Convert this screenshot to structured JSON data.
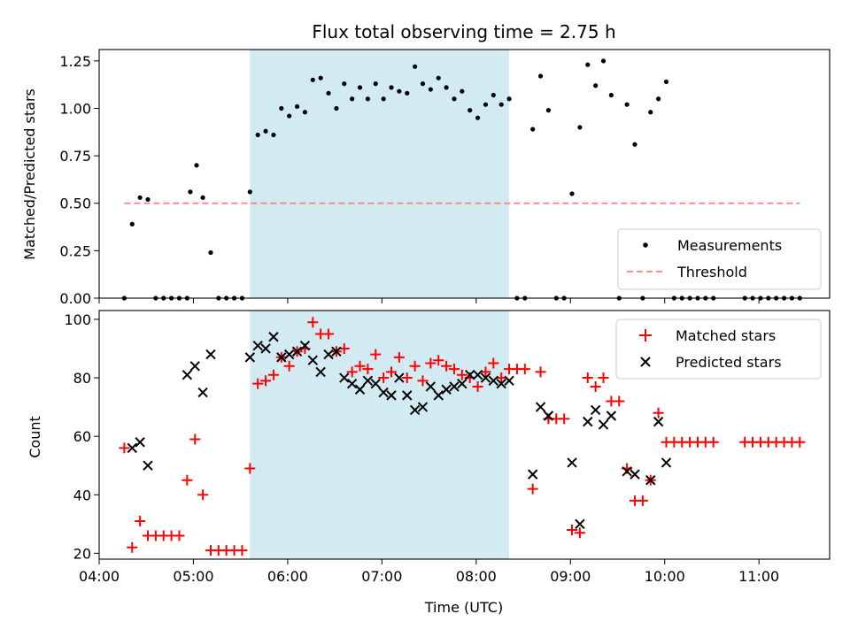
{
  "chart_data": [
    {
      "type": "scatter",
      "title": "Flux total observing time = 2.75 h",
      "xlabel": "",
      "ylabel": "Matched/Predicted stars",
      "xlim": [
        "04:00",
        "11:45"
      ],
      "ylim": [
        0,
        1.31
      ],
      "yticks": [
        0.0,
        0.25,
        0.5,
        0.75,
        1.0,
        1.25
      ],
      "ytick_labels": [
        "0.00",
        "0.25",
        "0.50",
        "0.75",
        "1.00",
        "1.25"
      ],
      "xticks": [
        "04:00",
        "05:00",
        "06:00",
        "07:00",
        "08:00",
        "09:00",
        "10:00",
        "11:00"
      ],
      "shaded_region": {
        "start": "05:36",
        "end": "08:21",
        "color": "#add8e6"
      },
      "legend_position": "lower right",
      "series": [
        {
          "name": "Measurements",
          "marker": "dot",
          "color": "#000000",
          "points": [
            [
              "04:16",
              0.0
            ],
            [
              "04:21",
              0.39
            ],
            [
              "04:26",
              0.53
            ],
            [
              "04:31",
              0.52
            ],
            [
              "04:36",
              0.0
            ],
            [
              "04:41",
              0.0
            ],
            [
              "04:46",
              0.0
            ],
            [
              "04:51",
              0.0
            ],
            [
              "04:56",
              0.0
            ],
            [
              "04:58",
              0.56
            ],
            [
              "05:02",
              0.7
            ],
            [
              "05:06",
              0.53
            ],
            [
              "05:11",
              0.24
            ],
            [
              "05:16",
              0.0
            ],
            [
              "05:21",
              0.0
            ],
            [
              "05:26",
              0.0
            ],
            [
              "05:31",
              0.0
            ],
            [
              "05:36",
              0.56
            ],
            [
              "05:41",
              0.86
            ],
            [
              "05:46",
              0.88
            ],
            [
              "05:51",
              0.86
            ],
            [
              "05:56",
              1.0
            ],
            [
              "06:01",
              0.96
            ],
            [
              "06:06",
              1.01
            ],
            [
              "06:11",
              0.98
            ],
            [
              "06:16",
              1.15
            ],
            [
              "06:21",
              1.16
            ],
            [
              "06:26",
              1.08
            ],
            [
              "06:31",
              1.0
            ],
            [
              "06:36",
              1.13
            ],
            [
              "06:41",
              1.05
            ],
            [
              "06:46",
              1.11
            ],
            [
              "06:51",
              1.05
            ],
            [
              "06:56",
              1.13
            ],
            [
              "07:01",
              1.05
            ],
            [
              "07:06",
              1.11
            ],
            [
              "07:11",
              1.09
            ],
            [
              "07:16",
              1.08
            ],
            [
              "07:21",
              1.22
            ],
            [
              "07:26",
              1.13
            ],
            [
              "07:31",
              1.1
            ],
            [
              "07:36",
              1.16
            ],
            [
              "07:41",
              1.11
            ],
            [
              "07:46",
              1.05
            ],
            [
              "07:51",
              1.09
            ],
            [
              "07:56",
              0.99
            ],
            [
              "08:01",
              0.95
            ],
            [
              "08:06",
              1.02
            ],
            [
              "08:11",
              1.07
            ],
            [
              "08:16",
              1.02
            ],
            [
              "08:21",
              1.05
            ],
            [
              "08:26",
              0.0
            ],
            [
              "08:31",
              0.0
            ],
            [
              "08:36",
              0.89
            ],
            [
              "08:41",
              1.17
            ],
            [
              "08:46",
              0.99
            ],
            [
              "08:51",
              0.0
            ],
            [
              "08:56",
              0.0
            ],
            [
              "09:01",
              0.55
            ],
            [
              "09:06",
              0.9
            ],
            [
              "09:11",
              1.23
            ],
            [
              "09:16",
              1.12
            ],
            [
              "09:21",
              1.25
            ],
            [
              "09:26",
              1.07
            ],
            [
              "09:31",
              0.0
            ],
            [
              "09:36",
              1.02
            ],
            [
              "09:41",
              0.81
            ],
            [
              "09:46",
              0.0
            ],
            [
              "09:51",
              0.98
            ],
            [
              "09:56",
              1.05
            ],
            [
              "10:01",
              1.14
            ],
            [
              "10:06",
              0.0
            ],
            [
              "10:11",
              0.0
            ],
            [
              "10:16",
              0.0
            ],
            [
              "10:21",
              0.0
            ],
            [
              "10:26",
              0.0
            ],
            [
              "10:31",
              0.0
            ],
            [
              "10:51",
              0.0
            ],
            [
              "10:56",
              0.0
            ],
            [
              "11:01",
              0.0
            ],
            [
              "11:06",
              0.0
            ],
            [
              "11:11",
              0.0
            ],
            [
              "11:16",
              0.0
            ],
            [
              "11:21",
              0.0
            ],
            [
              "11:26",
              0.0
            ]
          ]
        },
        {
          "name": "Threshold",
          "marker": "dashed-line",
          "color": "#ff8080",
          "points": [
            [
              "04:16",
              0.5
            ],
            [
              "11:26",
              0.5
            ]
          ]
        }
      ]
    },
    {
      "type": "scatter",
      "title": "",
      "xlabel": "Time (UTC)",
      "ylabel": "Count",
      "xlim": [
        "04:00",
        "11:45"
      ],
      "ylim": [
        18,
        103
      ],
      "yticks": [
        20,
        40,
        60,
        80,
        100
      ],
      "ytick_labels": [
        "20",
        "40",
        "60",
        "80",
        "100"
      ],
      "xticks": [
        "04:00",
        "05:00",
        "06:00",
        "07:00",
        "08:00",
        "09:00",
        "10:00",
        "11:00"
      ],
      "xtick_labels": [
        "04:00",
        "05:00",
        "06:00",
        "07:00",
        "08:00",
        "09:00",
        "10:00",
        "11:00"
      ],
      "shaded_region": {
        "start": "05:36",
        "end": "08:21",
        "color": "#add8e6"
      },
      "legend_position": "upper right",
      "series": [
        {
          "name": "Matched stars",
          "marker": "plus",
          "color": "#ff0000",
          "points": [
            [
              "04:16",
              56
            ],
            [
              "04:21",
              22
            ],
            [
              "04:26",
              31
            ],
            [
              "04:31",
              26
            ],
            [
              "04:36",
              26
            ],
            [
              "04:41",
              26
            ],
            [
              "04:46",
              26
            ],
            [
              "04:51",
              26
            ],
            [
              "04:56",
              45
            ],
            [
              "05:01",
              59
            ],
            [
              "05:06",
              40
            ],
            [
              "05:11",
              21
            ],
            [
              "05:16",
              21
            ],
            [
              "05:21",
              21
            ],
            [
              "05:26",
              21
            ],
            [
              "05:31",
              21
            ],
            [
              "05:36",
              49
            ],
            [
              "05:41",
              78
            ],
            [
              "05:46",
              79
            ],
            [
              "05:51",
              81
            ],
            [
              "05:56",
              87
            ],
            [
              "06:01",
              84
            ],
            [
              "06:06",
              89
            ],
            [
              "06:11",
              90
            ],
            [
              "06:16",
              99
            ],
            [
              "06:21",
              95
            ],
            [
              "06:26",
              95
            ],
            [
              "06:31",
              89
            ],
            [
              "06:36",
              90
            ],
            [
              "06:41",
              82
            ],
            [
              "06:46",
              84
            ],
            [
              "06:51",
              83
            ],
            [
              "06:56",
              88
            ],
            [
              "07:01",
              80
            ],
            [
              "07:06",
              82
            ],
            [
              "07:11",
              87
            ],
            [
              "07:16",
              80
            ],
            [
              "07:21",
              84
            ],
            [
              "07:26",
              79
            ],
            [
              "07:31",
              85
            ],
            [
              "07:36",
              86
            ],
            [
              "07:41",
              84
            ],
            [
              "07:46",
              83
            ],
            [
              "07:51",
              81
            ],
            [
              "07:56",
              80
            ],
            [
              "08:01",
              77
            ],
            [
              "08:06",
              82
            ],
            [
              "08:11",
              85
            ],
            [
              "08:16",
              80
            ],
            [
              "08:21",
              83
            ],
            [
              "08:26",
              83
            ],
            [
              "08:31",
              83
            ],
            [
              "08:36",
              42
            ],
            [
              "08:41",
              82
            ],
            [
              "08:46",
              66
            ],
            [
              "08:51",
              66
            ],
            [
              "08:56",
              66
            ],
            [
              "09:01",
              28
            ],
            [
              "09:06",
              27
            ],
            [
              "09:11",
              80
            ],
            [
              "09:16",
              77
            ],
            [
              "09:21",
              80
            ],
            [
              "09:26",
              72
            ],
            [
              "09:31",
              72
            ],
            [
              "09:36",
              49
            ],
            [
              "09:41",
              38
            ],
            [
              "09:46",
              38
            ],
            [
              "09:51",
              45
            ],
            [
              "09:56",
              68
            ],
            [
              "10:01",
              58
            ],
            [
              "10:06",
              58
            ],
            [
              "10:11",
              58
            ],
            [
              "10:16",
              58
            ],
            [
              "10:21",
              58
            ],
            [
              "10:26",
              58
            ],
            [
              "10:31",
              58
            ],
            [
              "10:51",
              58
            ],
            [
              "10:56",
              58
            ],
            [
              "11:01",
              58
            ],
            [
              "11:06",
              58
            ],
            [
              "11:11",
              58
            ],
            [
              "11:16",
              58
            ],
            [
              "11:21",
              58
            ],
            [
              "11:26",
              58
            ]
          ]
        },
        {
          "name": "Predicted stars",
          "marker": "x",
          "color": "#000000",
          "points": [
            [
              "04:21",
              56
            ],
            [
              "04:26",
              58
            ],
            [
              "04:31",
              50
            ],
            [
              "04:56",
              81
            ],
            [
              "05:01",
              84
            ],
            [
              "05:06",
              75
            ],
            [
              "05:11",
              88
            ],
            [
              "05:36",
              87
            ],
            [
              "05:41",
              91
            ],
            [
              "05:46",
              90
            ],
            [
              "05:51",
              94
            ],
            [
              "05:56",
              87
            ],
            [
              "06:01",
              88
            ],
            [
              "06:06",
              89
            ],
            [
              "06:11",
              91
            ],
            [
              "06:16",
              86
            ],
            [
              "06:21",
              82
            ],
            [
              "06:26",
              88
            ],
            [
              "06:31",
              89
            ],
            [
              "06:36",
              80
            ],
            [
              "06:41",
              78
            ],
            [
              "06:46",
              76
            ],
            [
              "06:51",
              79
            ],
            [
              "06:56",
              78
            ],
            [
              "07:01",
              75
            ],
            [
              "07:06",
              74
            ],
            [
              "07:11",
              80
            ],
            [
              "07:16",
              74
            ],
            [
              "07:21",
              69
            ],
            [
              "07:26",
              70
            ],
            [
              "07:31",
              77
            ],
            [
              "07:36",
              74
            ],
            [
              "07:41",
              76
            ],
            [
              "07:46",
              77
            ],
            [
              "07:51",
              78
            ],
            [
              "07:56",
              81
            ],
            [
              "08:01",
              81
            ],
            [
              "08:06",
              80
            ],
            [
              "08:11",
              79
            ],
            [
              "08:16",
              78
            ],
            [
              "08:21",
              79
            ],
            [
              "08:36",
              47
            ],
            [
              "08:41",
              70
            ],
            [
              "08:46",
              67
            ],
            [
              "09:01",
              51
            ],
            [
              "09:06",
              30
            ],
            [
              "09:11",
              65
            ],
            [
              "09:16",
              69
            ],
            [
              "09:21",
              64
            ],
            [
              "09:26",
              67
            ],
            [
              "09:36",
              48
            ],
            [
              "09:41",
              47
            ],
            [
              "09:51",
              45
            ],
            [
              "09:56",
              65
            ],
            [
              "10:01",
              51
            ]
          ]
        }
      ]
    }
  ]
}
